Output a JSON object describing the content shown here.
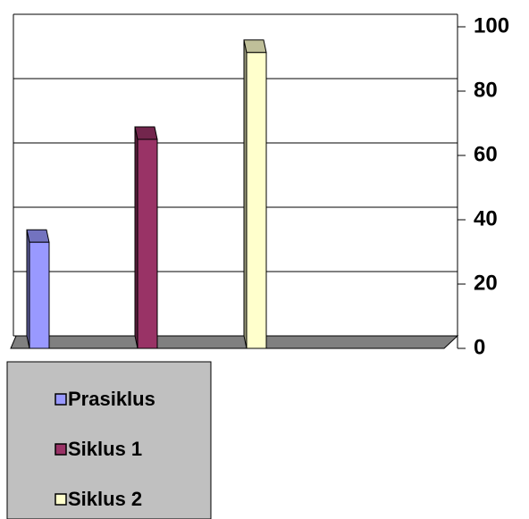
{
  "chart_data": {
    "type": "bar3d",
    "series": [
      {
        "name": "Prasiklus",
        "color": "#9999ff",
        "values": [
          33
        ]
      },
      {
        "name": "Siklus 1",
        "color": "#993366",
        "values": [
          65
        ]
      },
      {
        "name": "Siklus 2",
        "color": "#ffffcc",
        "values": [
          92
        ]
      }
    ],
    "ylim": [
      0,
      100
    ],
    "yticks": [
      0,
      20,
      40,
      60,
      80,
      100
    ],
    "grid": true,
    "legend": "bottom-left"
  }
}
